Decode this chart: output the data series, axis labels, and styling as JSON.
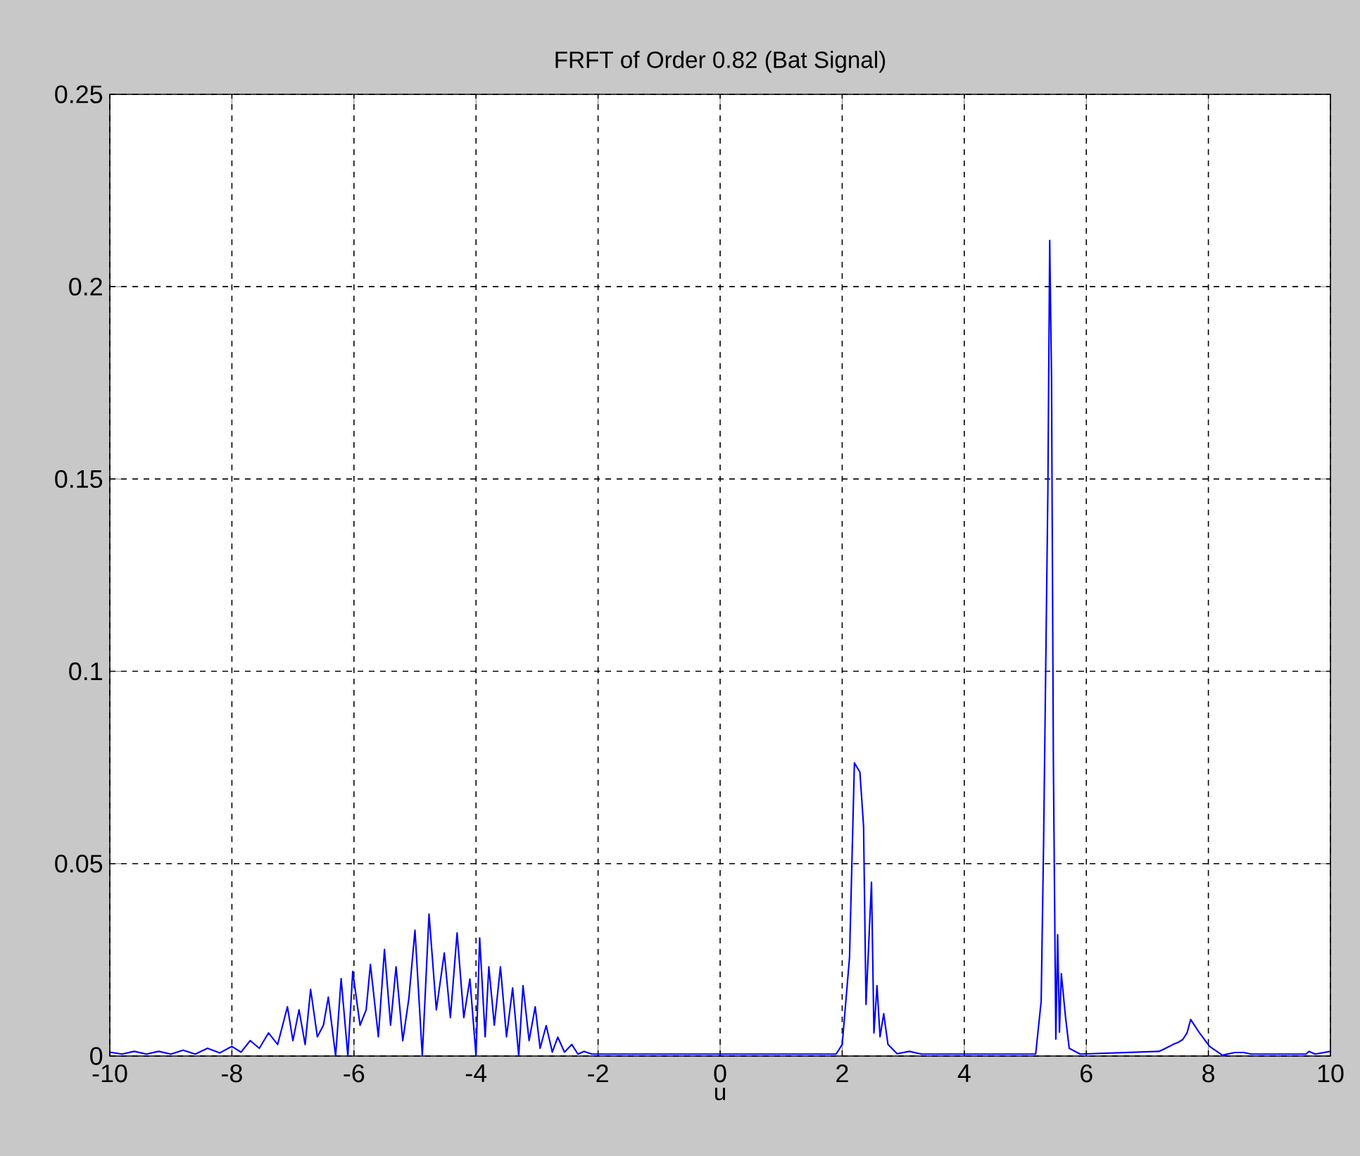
{
  "chart_data": {
    "type": "line",
    "title": "FRFT of Order 0.82 (Bat Signal)",
    "xlabel": "u",
    "x": [
      -10,
      -9.8,
      -9.6,
      -9.4,
      -9.2,
      -9.0,
      -8.8,
      -8.6,
      -8.4,
      -8.2,
      -8.0,
      -7.85,
      -7.7,
      -7.55,
      -7.4,
      -7.25,
      -7.09,
      -7.0,
      -6.9,
      -6.8,
      -6.71,
      -6.6,
      -6.5,
      -6.42,
      -6.3,
      -6.21,
      -6.1,
      -6.02,
      -5.9,
      -5.8,
      -5.73,
      -5.6,
      -5.5,
      -5.4,
      -5.31,
      -5.2,
      -5.1,
      -5.0,
      -4.88,
      -4.77,
      -4.65,
      -4.52,
      -4.42,
      -4.31,
      -4.2,
      -4.1,
      -4.0,
      -3.94,
      -3.85,
      -3.79,
      -3.7,
      -3.6,
      -3.5,
      -3.4,
      -3.3,
      -3.23,
      -3.13,
      -3.03,
      -2.95,
      -2.85,
      -2.75,
      -2.66,
      -2.55,
      -2.43,
      -2.33,
      -2.23,
      -2.1,
      0,
      1.9,
      2.0,
      2.12,
      2.2,
      2.29,
      2.35,
      2.39,
      2.48,
      2.52,
      2.57,
      2.62,
      2.68,
      2.75,
      2.9,
      3.1,
      3.3,
      5.17,
      5.26,
      5.3,
      5.37,
      5.4,
      5.43,
      5.46,
      5.5,
      5.53,
      5.56,
      5.59,
      5.66,
      5.72,
      5.9,
      7.19,
      7.3,
      7.42,
      7.5,
      7.58,
      7.65,
      7.71,
      7.85,
      8.02,
      8.23,
      8.43,
      8.58,
      8.7,
      9.6,
      9.65,
      9.75,
      10
    ],
    "values": [
      0.001,
      0.0005,
      0.0012,
      0.0005,
      0.0012,
      0.0005,
      0.0015,
      0.0005,
      0.002,
      0.0008,
      0.0025,
      0.001,
      0.004,
      0.002,
      0.006,
      0.003,
      0.0128,
      0.004,
      0.012,
      0.003,
      0.0173,
      0.005,
      0.008,
      0.0153,
      0.0,
      0.0201,
      0.0,
      0.022,
      0.008,
      0.012,
      0.0238,
      0.005,
      0.0277,
      0.008,
      0.0232,
      0.004,
      0.015,
      0.0327,
      0.0,
      0.0369,
      0.012,
      0.0268,
      0.01,
      0.032,
      0.01,
      0.02,
      0.0,
      0.0307,
      0.005,
      0.0232,
      0.008,
      0.0232,
      0.005,
      0.0177,
      0.0,
      0.0183,
      0.004,
      0.0128,
      0.002,
      0.0079,
      0.001,
      0.0049,
      0.001,
      0.003,
      0.0005,
      0.0012,
      0.0005,
      0.0005,
      0.0005,
      0.003,
      0.0256,
      0.0762,
      0.0738,
      0.0598,
      0.0134,
      0.0452,
      0.006,
      0.0183,
      0.005,
      0.011,
      0.003,
      0.0006,
      0.0012,
      0.0005,
      0.0005,
      0.0142,
      0.0556,
      0.147,
      0.212,
      0.176,
      0.077,
      0.0044,
      0.0315,
      0.0062,
      0.0214,
      0.01,
      0.002,
      0.0005,
      0.0012,
      0.002,
      0.003,
      0.0035,
      0.0043,
      0.006,
      0.0095,
      0.0061,
      0.0025,
      0.0002,
      0.0009,
      0.0009,
      0.0005,
      0.0005,
      0.0012,
      0.0005,
      0.0012
    ],
    "color": "#0000ff",
    "xlim": [
      -10,
      10
    ],
    "ylim": [
      0,
      0.25
    ],
    "xticks": [
      -10,
      -8,
      -6,
      -4,
      -2,
      0,
      2,
      4,
      6,
      8,
      10
    ],
    "yticks": [
      0,
      0.05,
      0.1,
      0.15,
      0.2,
      0.25
    ],
    "grid": true
  }
}
